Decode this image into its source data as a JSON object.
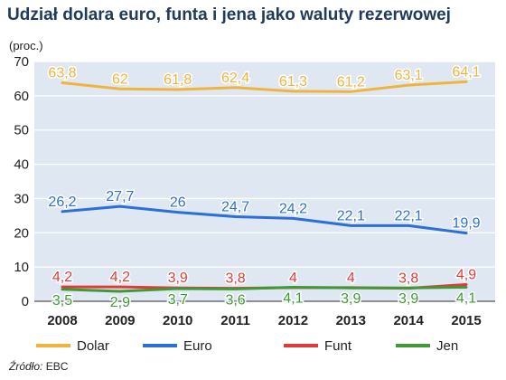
{
  "title": "Udział dolara euro, funta i jena jako waluty rezerwowej",
  "unit_label": "(proc.)",
  "source": {
    "prefix": "Źródło:",
    "name": "EBC"
  },
  "colors": {
    "background": "#dfe8f2",
    "dolar": "#f0b43c",
    "euro": "#2d6fd6",
    "funt": "#e03a3a",
    "jen": "#3f9a36"
  },
  "chart_data": {
    "type": "line",
    "title": "Udział dolara euro, funta i jena jako waluty rezerwowej",
    "ylabel": "(proc.)",
    "xlabel": "",
    "x": [
      "2008",
      "2009",
      "2010",
      "2011",
      "2012",
      "2013",
      "2014",
      "2015"
    ],
    "ylim": [
      0,
      70
    ],
    "yticks": [
      0,
      10,
      20,
      30,
      40,
      50,
      60,
      70
    ],
    "grid": true,
    "legend": "bottom",
    "series": [
      {
        "name": "Dolar",
        "key": "dolar",
        "values": [
          63.8,
          62,
          61.8,
          62.4,
          61.3,
          61.2,
          63.1,
          64.1
        ],
        "labels": [
          "63,8",
          "62",
          "61,8",
          "62,4",
          "61,3",
          "61,2",
          "63,1",
          "64,1"
        ]
      },
      {
        "name": "Euro",
        "key": "euro",
        "values": [
          26.2,
          27.7,
          26,
          24.7,
          24.2,
          22.1,
          22.1,
          19.9
        ],
        "labels": [
          "26,2",
          "27,7",
          "26",
          "24,7",
          "24,2",
          "22,1",
          "22,1",
          "19,9"
        ]
      },
      {
        "name": "Funt",
        "key": "funt",
        "values": [
          4.2,
          4.2,
          3.9,
          3.8,
          4,
          4,
          3.8,
          4.9
        ],
        "labels": [
          "4,2",
          "4,2",
          "3,9",
          "3,8",
          "4",
          "4",
          "3,8",
          "4,9"
        ]
      },
      {
        "name": "Jen",
        "key": "jen",
        "values": [
          3.5,
          2.9,
          3.7,
          3.6,
          4.1,
          3.9,
          3.9,
          4.1
        ],
        "labels": [
          "3,5",
          "2,9",
          "3,7",
          "3,6",
          "4,1",
          "3,9",
          "3,9",
          "4,1"
        ]
      }
    ]
  }
}
